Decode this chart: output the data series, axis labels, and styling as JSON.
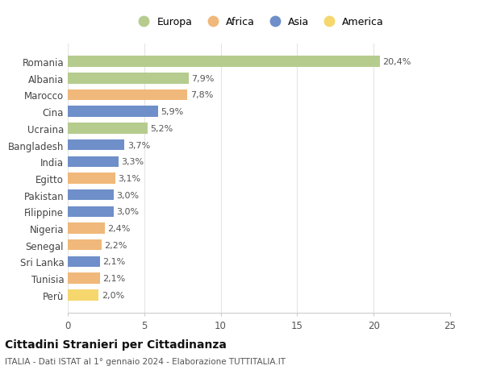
{
  "countries": [
    "Romania",
    "Albania",
    "Marocco",
    "Cina",
    "Ucraina",
    "Bangladesh",
    "India",
    "Egitto",
    "Pakistan",
    "Filippine",
    "Nigeria",
    "Senegal",
    "Sri Lanka",
    "Tunisia",
    "Perù"
  ],
  "values": [
    20.4,
    7.9,
    7.8,
    5.9,
    5.2,
    3.7,
    3.3,
    3.1,
    3.0,
    3.0,
    2.4,
    2.2,
    2.1,
    2.1,
    2.0
  ],
  "labels": [
    "20,4%",
    "7,9%",
    "7,8%",
    "5,9%",
    "5,2%",
    "3,7%",
    "3,3%",
    "3,1%",
    "3,0%",
    "3,0%",
    "2,4%",
    "2,2%",
    "2,1%",
    "2,1%",
    "2,0%"
  ],
  "continents": [
    "Europa",
    "Europa",
    "Africa",
    "Asia",
    "Europa",
    "Asia",
    "Asia",
    "Africa",
    "Asia",
    "Asia",
    "Africa",
    "Africa",
    "Asia",
    "Africa",
    "America"
  ],
  "colors": {
    "Europa": "#b5cc8e",
    "Africa": "#f0b87a",
    "Asia": "#6e8fc9",
    "America": "#f5d76e"
  },
  "legend_order": [
    "Europa",
    "Africa",
    "Asia",
    "America"
  ],
  "title": "Cittadini Stranieri per Cittadinanza",
  "subtitle": "ITALIA - Dati ISTAT al 1° gennaio 2024 - Elaborazione TUTTITALIA.IT",
  "xlim": [
    0,
    25
  ],
  "xticks": [
    0,
    5,
    10,
    15,
    20,
    25
  ],
  "background_color": "#ffffff",
  "grid_color": "#e5e5e5"
}
